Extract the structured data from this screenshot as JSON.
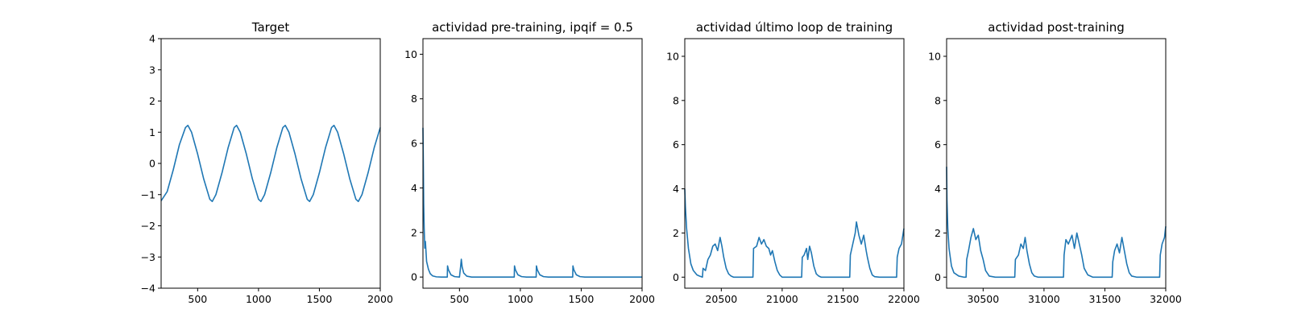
{
  "chart_data": [
    {
      "type": "line",
      "title": "Target",
      "xlabel": "",
      "ylabel": "",
      "xlim": [
        200,
        2000
      ],
      "ylim": [
        -4,
        4
      ],
      "xticks": [
        500,
        1000,
        1500,
        2000
      ],
      "yticks": [
        -4,
        -3,
        -2,
        -1,
        0,
        1,
        2,
        3,
        4
      ],
      "grid": false,
      "series": [
        {
          "color": "#1f77b4",
          "x": [
            200,
            250,
            300,
            350,
            400,
            420,
            450,
            500,
            550,
            600,
            620,
            650,
            700,
            750,
            800,
            820,
            850,
            900,
            950,
            1000,
            1020,
            1050,
            1100,
            1150,
            1200,
            1220,
            1250,
            1300,
            1350,
            1400,
            1420,
            1450,
            1500,
            1550,
            1600,
            1620,
            1650,
            1700,
            1750,
            1800,
            1820,
            1850,
            1900,
            1950,
            2000
          ],
          "y": [
            -1.2,
            -0.9,
            -0.2,
            0.6,
            1.15,
            1.22,
            1.0,
            0.3,
            -0.5,
            -1.15,
            -1.22,
            -1.0,
            -0.3,
            0.5,
            1.15,
            1.22,
            1.0,
            0.3,
            -0.5,
            -1.15,
            -1.22,
            -1.0,
            -0.3,
            0.5,
            1.15,
            1.22,
            1.0,
            0.3,
            -0.5,
            -1.15,
            -1.22,
            -1.0,
            -0.3,
            0.5,
            1.15,
            1.22,
            1.0,
            0.3,
            -0.5,
            -1.15,
            -1.22,
            -1.0,
            -0.3,
            0.5,
            1.15
          ]
        }
      ]
    },
    {
      "type": "line",
      "title": "actividad pre-training, ipqif = 0.5",
      "xlabel": "",
      "ylabel": "",
      "xlim": [
        200,
        2000
      ],
      "ylim": [
        -0.5,
        10.7
      ],
      "xticks": [
        500,
        1000,
        1500,
        2000
      ],
      "yticks": [
        0,
        2,
        4,
        6,
        8,
        10
      ],
      "grid": false,
      "series": [
        {
          "color": "#1f77b4",
          "x": [
            200,
            203,
            206,
            210,
            215,
            220,
            230,
            245,
            260,
            280,
            310,
            350,
            400,
            402,
            410,
            430,
            460,
            500,
            510,
            515,
            522,
            535,
            560,
            600,
            700,
            800,
            900,
            950,
            952,
            960,
            980,
            1010,
            1050,
            1100,
            1130,
            1132,
            1140,
            1160,
            1190,
            1230,
            1300,
            1400,
            1430,
            1432,
            1440,
            1460,
            1490,
            1530,
            1600,
            1700,
            1800,
            1900,
            2000
          ],
          "y": [
            6.7,
            5.2,
            3.3,
            2.2,
            1.3,
            1.6,
            0.7,
            0.35,
            0.15,
            0.05,
            0.01,
            0.0,
            0.0,
            0.5,
            0.32,
            0.1,
            0.02,
            0.0,
            0.5,
            0.8,
            0.45,
            0.18,
            0.04,
            0.0,
            0.0,
            0.0,
            0.0,
            0.0,
            0.5,
            0.32,
            0.1,
            0.02,
            0.0,
            0.0,
            0.0,
            0.5,
            0.32,
            0.1,
            0.02,
            0.0,
            0.0,
            0.0,
            0.0,
            0.5,
            0.32,
            0.1,
            0.02,
            0.0,
            0.0,
            0.0,
            0.0,
            0.0,
            0.0
          ]
        }
      ]
    },
    {
      "type": "line",
      "title": "actividad último loop de training",
      "xlabel": "",
      "ylabel": "",
      "xlim": [
        20200,
        22000
      ],
      "ylim": [
        -0.5,
        10.8
      ],
      "xticks": [
        20500,
        21000,
        21500,
        22000
      ],
      "yticks": [
        0,
        2,
        4,
        6,
        8,
        10
      ],
      "grid": false,
      "series": [
        {
          "color": "#1f77b4",
          "x": [
            20200,
            20205,
            20215,
            20230,
            20250,
            20270,
            20300,
            20320,
            20345,
            20350,
            20370,
            20390,
            20410,
            20430,
            20450,
            20470,
            20490,
            20505,
            20520,
            20540,
            20560,
            20580,
            20600,
            20650,
            20700,
            20760,
            20765,
            20790,
            20810,
            20830,
            20850,
            20870,
            20890,
            20905,
            20920,
            20940,
            20960,
            20980,
            21000,
            21080,
            21160,
            21165,
            21180,
            21200,
            21210,
            21225,
            21240,
            21260,
            21280,
            21300,
            21320,
            21340,
            21400,
            21500,
            21555,
            21560,
            21580,
            21600,
            21610,
            21630,
            21650,
            21670,
            21690,
            21700,
            21720,
            21740,
            21760,
            21800,
            21900,
            21940,
            21945,
            21960,
            21980,
            22000
          ],
          "y": [
            4.0,
            3.2,
            2.2,
            1.3,
            0.6,
            0.3,
            0.1,
            0.05,
            0.0,
            0.4,
            0.3,
            0.8,
            1.0,
            1.4,
            1.5,
            1.2,
            1.8,
            1.4,
            0.9,
            0.4,
            0.15,
            0.05,
            0.0,
            0.0,
            0.0,
            0.0,
            1.3,
            1.4,
            1.8,
            1.5,
            1.7,
            1.4,
            1.3,
            1.0,
            1.2,
            0.7,
            0.3,
            0.1,
            0.0,
            0.0,
            0.0,
            0.9,
            1.0,
            1.3,
            0.8,
            1.4,
            1.1,
            0.5,
            0.15,
            0.05,
            0.0,
            0.0,
            0.0,
            0.0,
            0.0,
            1.0,
            1.5,
            2.0,
            2.5,
            1.9,
            1.5,
            1.9,
            1.2,
            0.9,
            0.4,
            0.1,
            0.02,
            0.0,
            0.0,
            0.0,
            0.9,
            1.3,
            1.5,
            2.2
          ]
        }
      ]
    },
    {
      "type": "line",
      "title": "actividad post-training",
      "xlabel": "",
      "ylabel": "",
      "xlim": [
        30200,
        32000
      ],
      "ylim": [
        -0.5,
        10.8
      ],
      "xticks": [
        30500,
        31000,
        31500,
        32000
      ],
      "yticks": [
        0,
        2,
        4,
        6,
        8,
        10
      ],
      "grid": false,
      "series": [
        {
          "color": "#1f77b4",
          "x": [
            30200,
            30203,
            30210,
            30220,
            30240,
            30260,
            30300,
            30340,
            30360,
            30365,
            30380,
            30400,
            30420,
            30440,
            30460,
            30480,
            30500,
            30520,
            30550,
            30600,
            30700,
            30760,
            30765,
            30790,
            30810,
            30830,
            30845,
            30860,
            30880,
            30900,
            30920,
            30950,
            31000,
            31100,
            31160,
            31165,
            31180,
            31200,
            31230,
            31250,
            31270,
            31290,
            31310,
            31330,
            31360,
            31400,
            31500,
            31560,
            31565,
            31580,
            31600,
            31620,
            31640,
            31660,
            31680,
            31700,
            31720,
            31760,
            31800,
            31900,
            31950,
            31955,
            31970,
            31990,
            32000
          ],
          "y": [
            5.0,
            3.5,
            2.2,
            1.3,
            0.5,
            0.2,
            0.05,
            0.0,
            0.0,
            0.8,
            1.2,
            1.8,
            2.2,
            1.7,
            1.9,
            1.2,
            0.8,
            0.3,
            0.05,
            0.0,
            0.0,
            0.0,
            0.8,
            1.0,
            1.5,
            1.3,
            1.8,
            1.2,
            0.6,
            0.2,
            0.05,
            0.0,
            0.0,
            0.0,
            0.0,
            1.0,
            1.7,
            1.5,
            1.9,
            1.3,
            2.0,
            1.5,
            1.0,
            0.4,
            0.1,
            0.0,
            0.0,
            0.0,
            0.7,
            1.2,
            1.5,
            1.1,
            1.8,
            1.2,
            0.6,
            0.2,
            0.05,
            0.0,
            0.0,
            0.0,
            0.0,
            1.0,
            1.5,
            1.8,
            2.3
          ]
        }
      ]
    }
  ]
}
